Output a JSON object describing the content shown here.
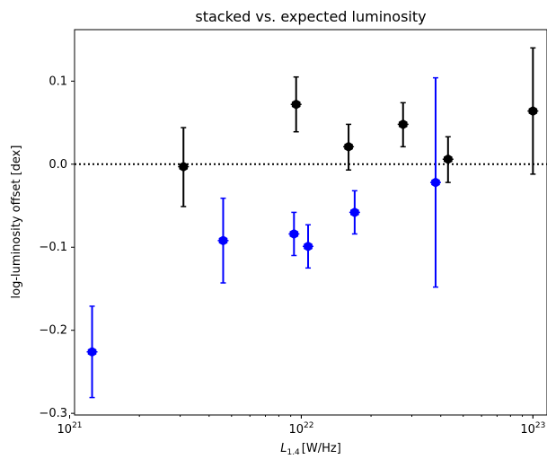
{
  "chart_data": {
    "type": "scatter",
    "title": "stacked vs. expected luminosity",
    "xlabel_main": "L",
    "xlabel_sub": "1.4",
    "xlabel_unit": "[W/Hz]",
    "ylabel": "log-luminosity offset [dex]",
    "xscale": "log",
    "xlim": [
      1.05e+21,
      1.15e+23
    ],
    "ylim": [
      -0.302,
      0.162
    ],
    "x_ticks": [
      {
        "value": 1e+21,
        "base": "10",
        "exp": "21"
      },
      {
        "value": 1e+22,
        "base": "10",
        "exp": "22"
      },
      {
        "value": 1e+23,
        "base": "10",
        "exp": "23"
      }
    ],
    "y_ticks": [
      {
        "value": 0.1,
        "label": "0.1"
      },
      {
        "value": 0.0,
        "label": "0.0"
      },
      {
        "value": -0.1,
        "label": "−0.1"
      },
      {
        "value": -0.2,
        "label": "−0.2"
      },
      {
        "value": -0.3,
        "label": "−0.3"
      }
    ],
    "reference_line": {
      "y": 0.0,
      "style": "dotted",
      "color": "#000000"
    },
    "grid": false,
    "series": [
      {
        "color": "#000000",
        "points": [
          {
            "x": 3.1e+21,
            "y": -0.003,
            "yerr_low": -0.051,
            "yerr_high": 0.044
          },
          {
            "x": 9.5e+21,
            "y": 0.072,
            "yerr_low": 0.039,
            "yerr_high": 0.105
          },
          {
            "x": 1.6e+22,
            "y": 0.021,
            "yerr_low": -0.007,
            "yerr_high": 0.048
          },
          {
            "x": 2.75e+22,
            "y": 0.048,
            "yerr_low": 0.021,
            "yerr_high": 0.074
          },
          {
            "x": 4.3e+22,
            "y": 0.006,
            "yerr_low": -0.022,
            "yerr_high": 0.033
          },
          {
            "x": 1e+23,
            "y": 0.064,
            "yerr_low": -0.012,
            "yerr_high": 0.14
          }
        ]
      },
      {
        "color": "#0000ff",
        "points": [
          {
            "x": 1.25e+21,
            "y": -0.226,
            "yerr_low": -0.281,
            "yerr_high": -0.171
          },
          {
            "x": 4.6e+21,
            "y": -0.092,
            "yerr_low": -0.143,
            "yerr_high": -0.041
          },
          {
            "x": 9.3e+21,
            "y": -0.084,
            "yerr_low": -0.11,
            "yerr_high": -0.058
          },
          {
            "x": 1.07e+22,
            "y": -0.099,
            "yerr_low": -0.125,
            "yerr_high": -0.073
          },
          {
            "x": 1.7e+22,
            "y": -0.058,
            "yerr_low": -0.084,
            "yerr_high": -0.032
          },
          {
            "x": 3.8e+22,
            "y": -0.022,
            "yerr_low": -0.148,
            "yerr_high": 0.104
          }
        ]
      }
    ]
  }
}
